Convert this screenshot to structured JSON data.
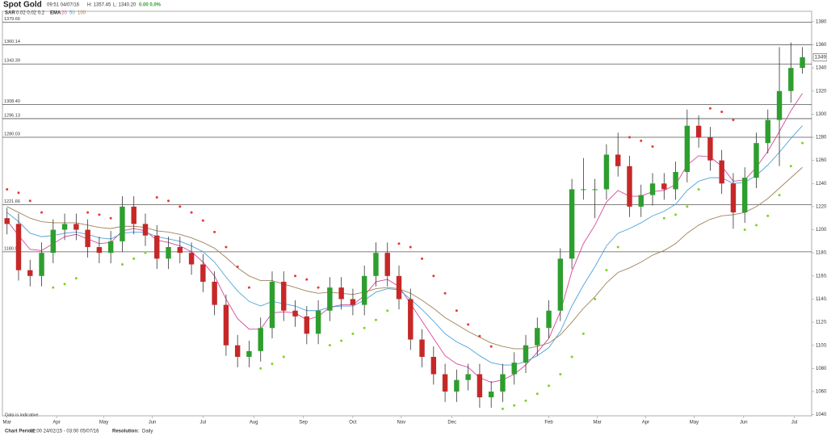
{
  "chart_data": {
    "type": "candlestick",
    "title": "Spot Gold",
    "header": {
      "time": "09:51 04/07/16",
      "high": "H: 1357.45",
      "low": "L: 1340.20",
      "change": "0.00 0.0%"
    },
    "sar": {
      "label": "SAR",
      "params": "0.02 0.02 0.2",
      "up_color": "#7ed321",
      "down_color": "#e53935",
      "values": [
        1235,
        1232,
        1225,
        1215,
        1150,
        1153,
        1158,
        1215,
        1213,
        1210,
        1170,
        1175,
        1180,
        1228,
        1225,
        1220,
        1215,
        1208,
        1198,
        1185,
        1168,
        1150,
        1080,
        1084,
        1090,
        1160,
        1157,
        1150,
        1100,
        1104,
        1110,
        1115,
        1122,
        1130,
        1188,
        1185,
        1175,
        1160,
        1145,
        1130,
        1118,
        1108,
        1099,
        1045,
        1048,
        1052,
        1058,
        1065,
        1075,
        1090,
        1110,
        1140,
        1165,
        1185,
        1280,
        1277,
        1272,
        1210,
        1213,
        1220,
        1235,
        1305,
        1302,
        1295,
        1200,
        1204,
        1212,
        1230,
        1255,
        1275
      ]
    },
    "ema": {
      "label": "EMA",
      "series": [
        {
          "name": "20",
          "color": "#d6489a",
          "values": [
            1208,
            1195,
            1183,
            1182,
            1188,
            1194,
            1196,
            1192,
            1188,
            1189,
            1199,
            1201,
            1199,
            1191,
            1189,
            1186,
            1181,
            1172,
            1160,
            1140,
            1123,
            1114,
            1114,
            1128,
            1129,
            1128,
            1122,
            1125,
            1133,
            1135,
            1135,
            1143,
            1155,
            1157,
            1151,
            1136,
            1121,
            1106,
            1091,
            1084,
            1081,
            1072,
            1068,
            1070,
            1075,
            1083,
            1094,
            1106,
            1129,
            1164,
            1188,
            1204,
            1224,
            1234,
            1229,
            1229,
            1233,
            1234,
            1239,
            1256,
            1264,
            1263,
            1255,
            1242,
            1243,
            1254,
            1268,
            1285,
            1303,
            1318
          ]
        },
        {
          "name": "50",
          "color": "#4fa3d9",
          "values": [
            1215,
            1207,
            1197,
            1194,
            1195,
            1197,
            1198,
            1196,
            1193,
            1192,
            1197,
            1198,
            1198,
            1194,
            1192,
            1190,
            1186,
            1181,
            1172,
            1159,
            1147,
            1138,
            1134,
            1138,
            1136,
            1134,
            1130,
            1130,
            1133,
            1134,
            1134,
            1139,
            1146,
            1149,
            1148,
            1140,
            1131,
            1121,
            1110,
            1103,
            1098,
            1091,
            1085,
            1083,
            1083,
            1086,
            1091,
            1098,
            1112,
            1134,
            1152,
            1168,
            1186,
            1197,
            1201,
            1206,
            1212,
            1216,
            1222,
            1234,
            1242,
            1245,
            1245,
            1240,
            1241,
            1247,
            1256,
            1267,
            1279,
            1290
          ]
        },
        {
          "name": "100",
          "color": "#a0825a",
          "values": [
            1220,
            1215,
            1210,
            1207,
            1206,
            1206,
            1206,
            1204,
            1202,
            1201,
            1203,
            1203,
            1202,
            1199,
            1198,
            1196,
            1193,
            1189,
            1184,
            1176,
            1167,
            1160,
            1156,
            1156,
            1153,
            1150,
            1147,
            1145,
            1146,
            1145,
            1144,
            1146,
            1149,
            1150,
            1149,
            1145,
            1139,
            1132,
            1124,
            1118,
            1112,
            1107,
            1102,
            1099,
            1097,
            1097,
            1099,
            1102,
            1109,
            1120,
            1132,
            1142,
            1154,
            1163,
            1167,
            1172,
            1178,
            1182,
            1188,
            1197,
            1204,
            1209,
            1212,
            1213,
            1215,
            1220,
            1227,
            1236,
            1245,
            1254
          ]
        }
      ]
    },
    "up_color": "#2e9e2e",
    "down_color": "#c62828",
    "open": [
      1210,
      1205,
      1165,
      1160,
      1180,
      1200,
      1205,
      1200,
      1185,
      1180,
      1190,
      1220,
      1205,
      1195,
      1175,
      1185,
      1180,
      1170,
      1155,
      1135,
      1100,
      1090,
      1095,
      1115,
      1155,
      1130,
      1125,
      1110,
      1130,
      1150,
      1140,
      1135,
      1160,
      1180,
      1160,
      1140,
      1105,
      1090,
      1075,
      1060,
      1070,
      1075,
      1055,
      1060,
      1075,
      1085,
      1100,
      1115,
      1130,
      1175,
      1235,
      1235,
      1235,
      1265,
      1255,
      1220,
      1230,
      1240,
      1235,
      1250,
      1290,
      1280,
      1260,
      1240,
      1215,
      1245,
      1275,
      1295,
      1320,
      1340
    ],
    "high": [
      1219,
      1214,
      1174,
      1189,
      1209,
      1214,
      1214,
      1209,
      1194,
      1199,
      1229,
      1229,
      1214,
      1204,
      1194,
      1194,
      1189,
      1179,
      1164,
      1144,
      1109,
      1104,
      1124,
      1164,
      1164,
      1139,
      1134,
      1139,
      1159,
      1159,
      1149,
      1169,
      1189,
      1189,
      1169,
      1149,
      1114,
      1099,
      1084,
      1079,
      1084,
      1084,
      1069,
      1084,
      1094,
      1109,
      1124,
      1139,
      1184,
      1244,
      1262,
      1244,
      1274,
      1284,
      1264,
      1239,
      1249,
      1249,
      1259,
      1304,
      1299,
      1289,
      1269,
      1249,
      1254,
      1284,
      1304,
      1358,
      1362,
      1358
    ],
    "low": [
      1196,
      1156,
      1151,
      1151,
      1171,
      1191,
      1191,
      1176,
      1171,
      1171,
      1181,
      1196,
      1186,
      1166,
      1166,
      1171,
      1161,
      1146,
      1126,
      1091,
      1081,
      1081,
      1086,
      1106,
      1121,
      1116,
      1101,
      1101,
      1121,
      1131,
      1126,
      1126,
      1151,
      1151,
      1131,
      1096,
      1081,
      1066,
      1051,
      1051,
      1061,
      1046,
      1046,
      1051,
      1066,
      1076,
      1091,
      1106,
      1121,
      1166,
      1226,
      1210,
      1226,
      1246,
      1211,
      1211,
      1221,
      1226,
      1226,
      1241,
      1271,
      1251,
      1231,
      1201,
      1206,
      1236,
      1266,
      1255,
      1310,
      1335
    ],
    "close": [
      1205,
      1165,
      1160,
      1180,
      1200,
      1205,
      1200,
      1185,
      1180,
      1190,
      1220,
      1205,
      1195,
      1175,
      1185,
      1180,
      1170,
      1155,
      1135,
      1100,
      1090,
      1095,
      1115,
      1155,
      1130,
      1125,
      1110,
      1130,
      1150,
      1140,
      1135,
      1160,
      1180,
      1160,
      1140,
      1105,
      1090,
      1075,
      1060,
      1070,
      1075,
      1055,
      1060,
      1075,
      1085,
      1100,
      1115,
      1130,
      1175,
      1235,
      1235,
      1235,
      1265,
      1255,
      1220,
      1230,
      1240,
      1235,
      1250,
      1290,
      1280,
      1260,
      1240,
      1215,
      1245,
      1275,
      1295,
      1320,
      1340,
      1349.3
    ],
    "last_price": {
      "value": 1349.3,
      "label": "1349.30"
    },
    "levels": [
      {
        "value": 1379.66,
        "label": "1379.66"
      },
      {
        "value": 1360.14,
        "label": "1360.14"
      },
      {
        "value": 1343.39,
        "label": "1343.39"
      },
      {
        "value": 1308.4,
        "label": "1308.40"
      },
      {
        "value": 1296.13,
        "label": "1296.13"
      },
      {
        "value": 1280.03,
        "label": "1280.03"
      },
      {
        "value": 1221.66,
        "label": "1221.66"
      },
      {
        "value": 1180.9,
        "label": "1180.90"
      }
    ],
    "ylim": [
      1039,
      1389
    ],
    "yticks": [
      {
        "value": 1040,
        "label": "1040.00"
      },
      {
        "value": 1060,
        "label": "1060.00"
      },
      {
        "value": 1080,
        "label": "1080.00"
      },
      {
        "value": 1100,
        "label": "1100.00"
      },
      {
        "value": 1120,
        "label": "1120.00"
      },
      {
        "value": 1140,
        "label": "1140.00"
      },
      {
        "value": 1160,
        "label": "1160.00"
      },
      {
        "value": 1180,
        "label": "1180.00"
      },
      {
        "value": 1200,
        "label": "1200.00"
      },
      {
        "value": 1220,
        "label": "1220.00"
      },
      {
        "value": 1240,
        "label": "1240.00"
      },
      {
        "value": 1260,
        "label": "1260.00"
      },
      {
        "value": 1280,
        "label": "1280.00"
      },
      {
        "value": 1300,
        "label": "1300.00"
      },
      {
        "value": 1320,
        "label": "1320.00"
      },
      {
        "value": 1340,
        "label": "1340.00"
      },
      {
        "value": 1360,
        "label": "1360.00"
      },
      {
        "value": 1380,
        "label": "1380.00"
      }
    ],
    "xlim": [
      -0.4,
      69.8
    ],
    "xticks": [
      {
        "value": 0,
        "label": "Mar"
      },
      {
        "value": 4.3,
        "label": "Apr"
      },
      {
        "value": 8.4,
        "label": "May"
      },
      {
        "value": 12.6,
        "label": "Jun"
      },
      {
        "value": 17,
        "label": "Jul"
      },
      {
        "value": 21.4,
        "label": "Aug"
      },
      {
        "value": 25.7,
        "label": "Sep"
      },
      {
        "value": 30,
        "label": "Oct"
      },
      {
        "value": 34.2,
        "label": "Nov"
      },
      {
        "value": 38.6,
        "label": "Dec"
      },
      {
        "value": 47,
        "label": "Feb"
      },
      {
        "value": 51.2,
        "label": "Mar"
      },
      {
        "value": 55.4,
        "label": "Apr"
      },
      {
        "value": 59.6,
        "label": "May"
      },
      {
        "value": 63.9,
        "label": "Jun"
      },
      {
        "value": 68.3,
        "label": "Jul"
      }
    ],
    "note": "Data is indicative",
    "footer": {
      "period_label": "Chart Period:",
      "period": "02:00 24/02/15 - 03:00 05/07/16",
      "resolution_label": "Resolution:",
      "resolution": "Daily"
    }
  }
}
